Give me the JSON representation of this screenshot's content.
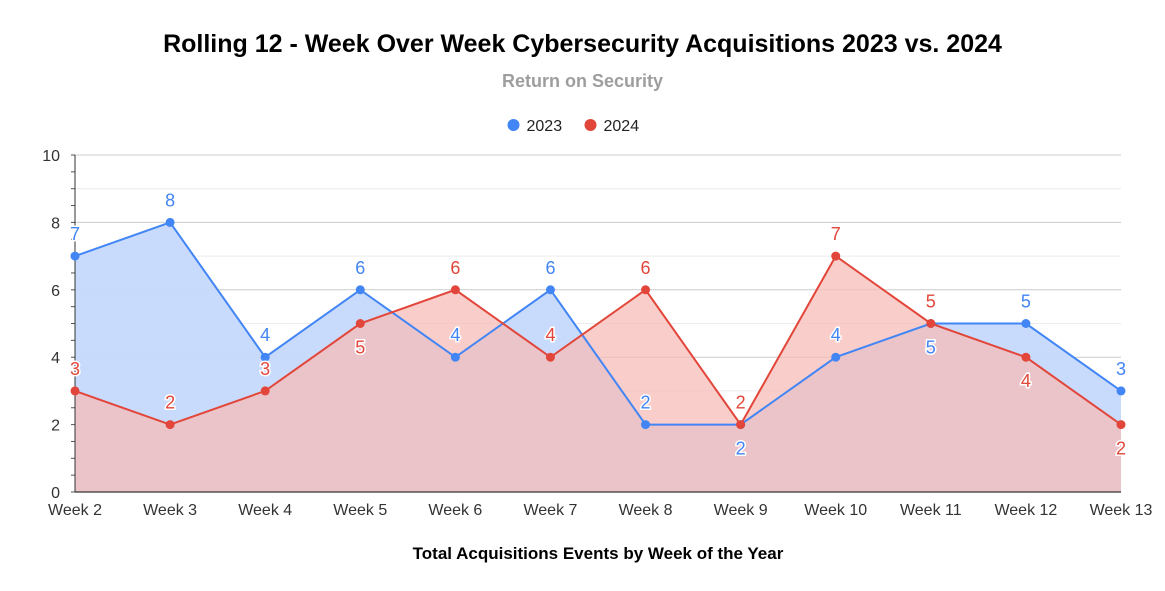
{
  "chart_data": {
    "type": "area",
    "title": "Rolling 12 - Week Over Week Cybersecurity Acquisitions 2023 vs. 2024",
    "subtitle": "Return on Security",
    "xlabel": "Total Acquisitions Events by Week of the Year",
    "ylabel": "",
    "ylim": [
      0,
      10
    ],
    "yticks": [
      0,
      2,
      4,
      6,
      8,
      10
    ],
    "grid": true,
    "legend_position": "top-center",
    "categories": [
      "Week 2",
      "Week 3",
      "Week 4",
      "Week 5",
      "Week 6",
      "Week 7",
      "Week 8",
      "Week 9",
      "Week 10",
      "Week 11",
      "Week 12",
      "Week 13"
    ],
    "series": [
      {
        "name": "2023",
        "color": "#4285f4",
        "fill": "#c6d9fc",
        "values": [
          7,
          8,
          4,
          6,
          4,
          6,
          2,
          2,
          4,
          5,
          5,
          3
        ],
        "label_positions": [
          "above",
          "above",
          "above",
          "above",
          "above",
          "above",
          "above",
          "below",
          "above",
          "below",
          "above",
          "above"
        ]
      },
      {
        "name": "2024",
        "color": "#e2463a",
        "fill": "#f5bcb8",
        "values": [
          3,
          2,
          3,
          5,
          6,
          4,
          6,
          2,
          7,
          5,
          4,
          2
        ],
        "label_positions": [
          "above",
          "above",
          "above",
          "below",
          "above",
          "above",
          "above",
          "above",
          "above",
          "above",
          "below",
          "below"
        ]
      }
    ]
  }
}
